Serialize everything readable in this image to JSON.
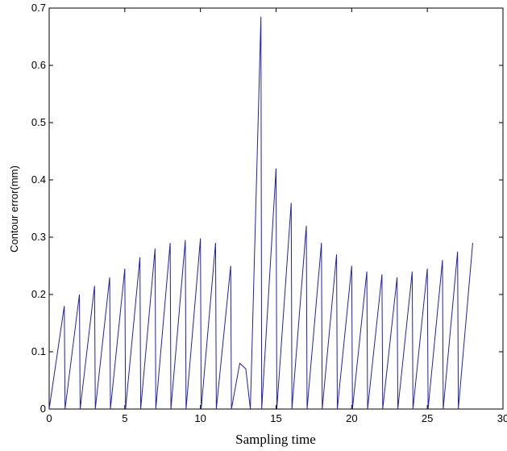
{
  "chart_data": {
    "type": "line",
    "title": "",
    "xlabel": "Sampling time",
    "ylabel": "Contour error(mm)",
    "xlim": [
      0,
      30
    ],
    "ylim": [
      0,
      0.7
    ],
    "xticks": [
      0,
      5,
      10,
      15,
      20,
      25,
      30
    ],
    "yticks": [
      0,
      0.1,
      0.2,
      0.3,
      0.4,
      0.5,
      0.6,
      0.7
    ],
    "xtick_labels": [
      "0",
      "5",
      "10",
      "15",
      "20",
      "25",
      "30"
    ],
    "ytick_labels": [
      "0",
      "0.1",
      "0.2",
      "0.3",
      "0.4",
      "0.5",
      "0.6",
      "0.7"
    ],
    "grid": false,
    "line_color": "#2020b0",
    "series": [
      {
        "x": [
          0,
          1.0,
          1.05,
          2.0,
          2.05,
          3.0,
          3.05,
          4.0,
          4.05,
          5.0,
          5.05,
          6.0,
          6.05,
          7.0,
          7.05,
          8.0,
          8.05,
          9.0,
          9.05,
          10.0,
          10.05,
          11.0,
          11.05,
          12.0,
          12.05,
          12.6,
          13.0,
          13.3,
          14.0,
          14.05,
          15.0,
          15.05,
          16.0,
          16.05,
          17.0,
          17.05,
          18.0,
          18.05,
          19.0,
          19.05,
          20.0,
          20.05,
          21.0,
          21.05,
          22.0,
          22.05,
          23.0,
          23.05,
          24.0,
          24.05,
          25.0,
          25.05,
          26.0,
          26.05,
          27.0,
          27.05,
          28.0
        ],
        "y": [
          0,
          0.18,
          0,
          0.2,
          0,
          0.215,
          0,
          0.23,
          0,
          0.245,
          0,
          0.265,
          0,
          0.28,
          0,
          0.29,
          0,
          0.295,
          0,
          0.298,
          0,
          0.29,
          0,
          0.25,
          0,
          0.08,
          0.07,
          0,
          0.685,
          0,
          0.42,
          0,
          0.36,
          0,
          0.32,
          0,
          0.29,
          0,
          0.27,
          0,
          0.25,
          0,
          0.24,
          0,
          0.235,
          0,
          0.23,
          0,
          0.24,
          0,
          0.245,
          0,
          0.26,
          0,
          0.275,
          0,
          0.29
        ]
      }
    ]
  }
}
